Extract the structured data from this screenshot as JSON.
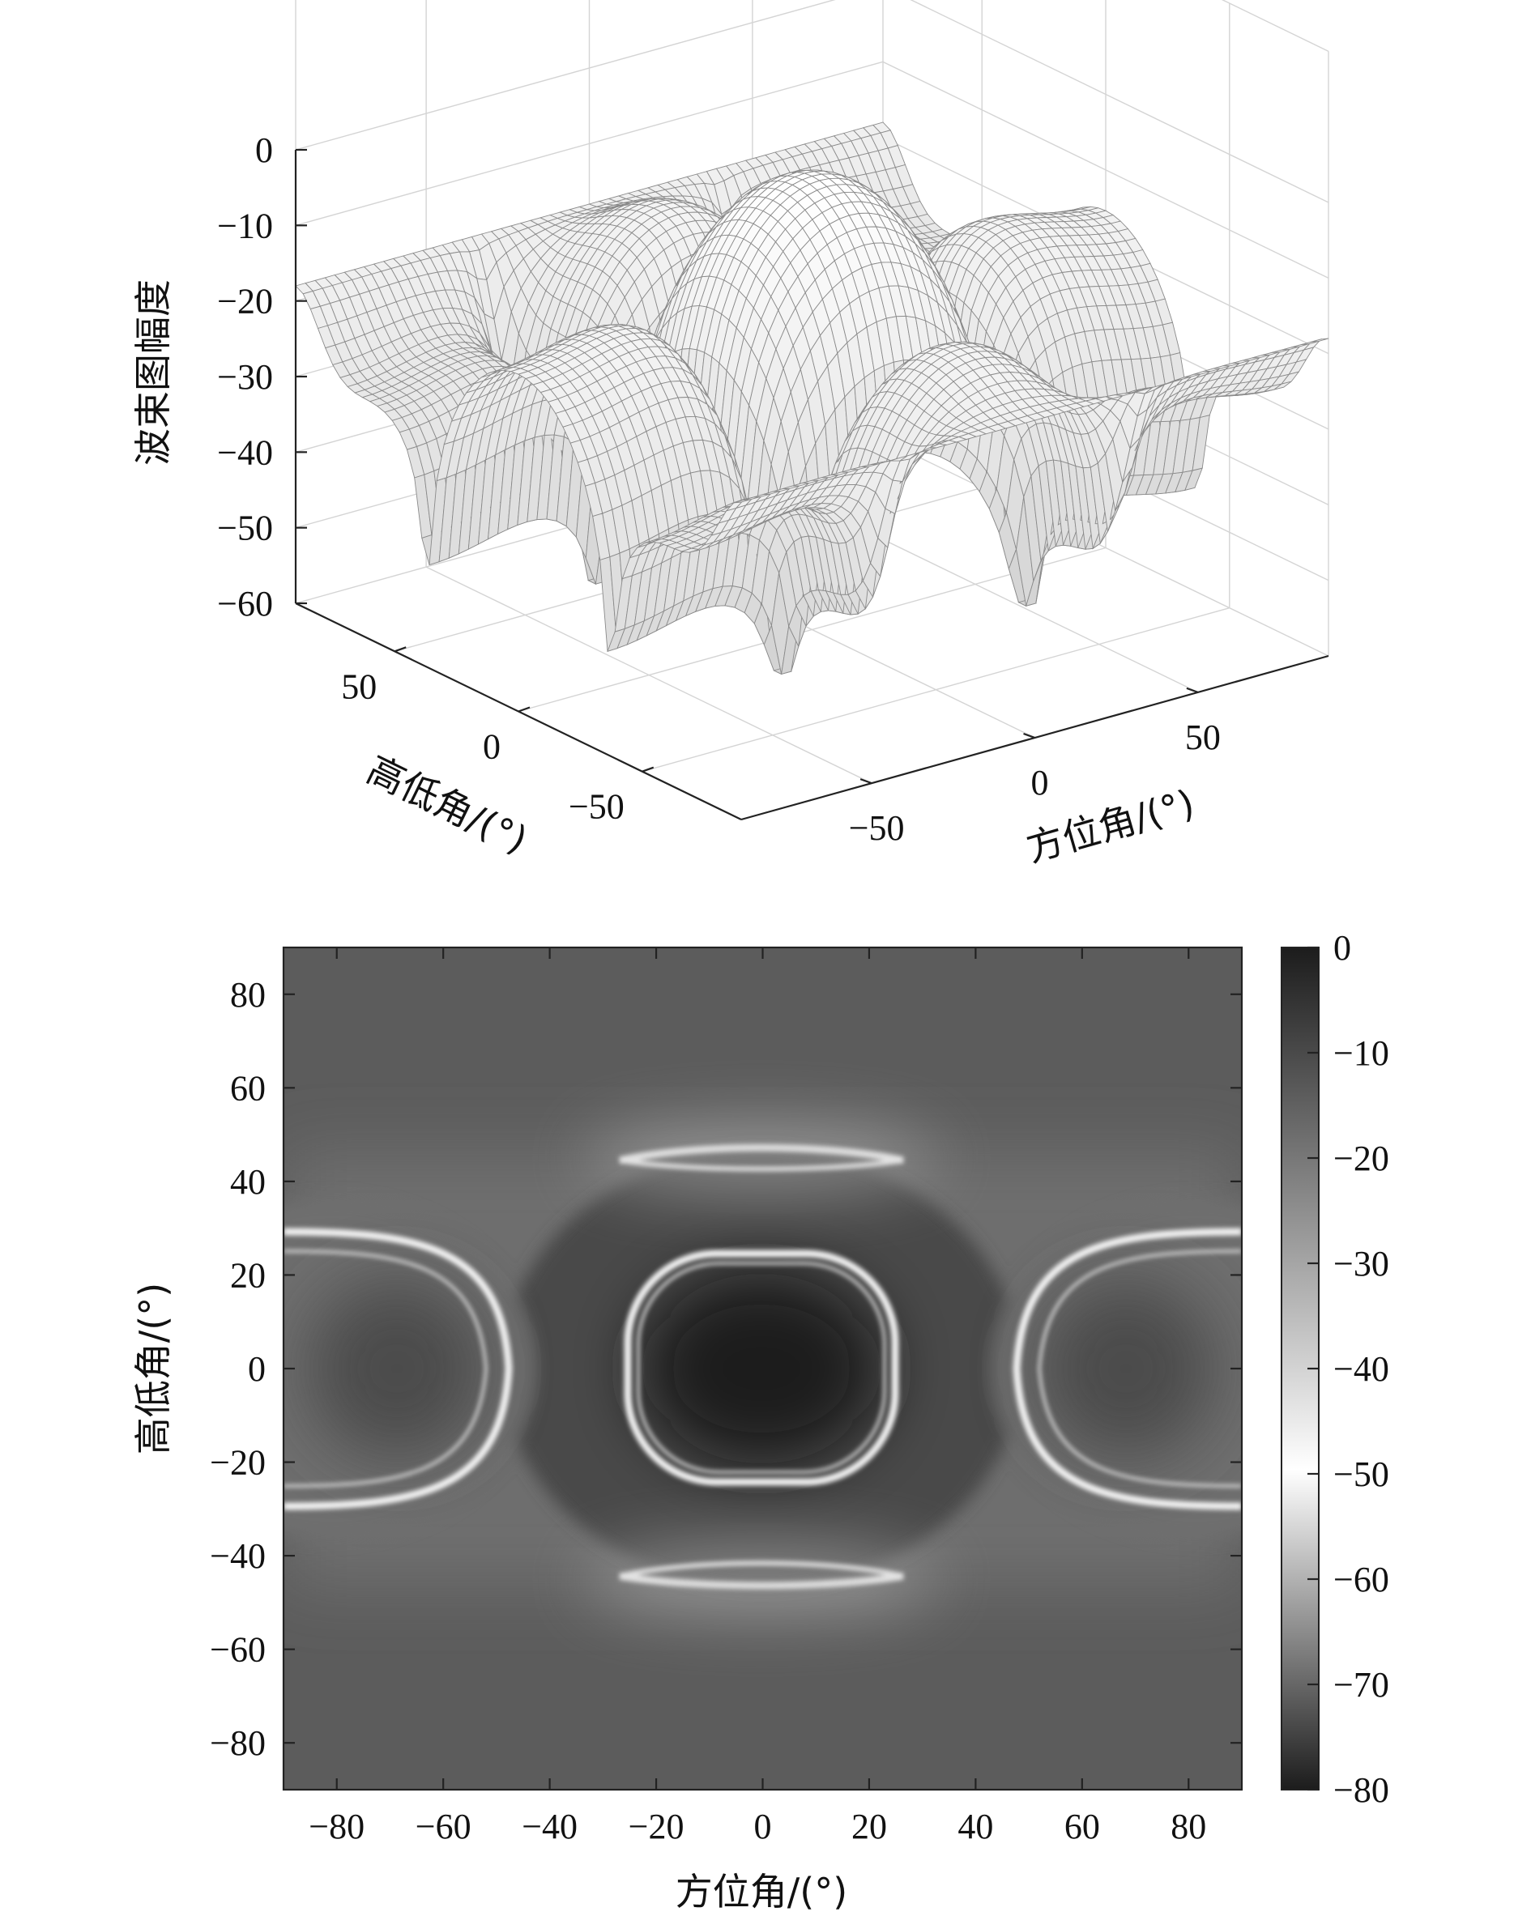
{
  "chart_data": [
    {
      "type": "surface",
      "ylabel": "波束图幅度",
      "xlabel_elevation": "高低角/(°)",
      "xlabel_azimuth": "方位角/(°)",
      "zlim": [
        -60,
        0
      ],
      "z_ticks": [
        "0",
        "−10",
        "−20",
        "−30",
        "−40",
        "−50",
        "−60"
      ],
      "elevation_ticks": [
        "50",
        "0",
        "−50"
      ],
      "azimuth_ticks": [
        "−50",
        "0",
        "50"
      ],
      "grid": true,
      "surface": {
        "main_lobe_db": 0,
        "edge_level_db": -18,
        "min_level_db": -55,
        "elevation_range": [
          -90,
          90
        ],
        "azimuth_range": [
          -90,
          90
        ]
      }
    },
    {
      "type": "heatmap",
      "xlabel": "方位角/(°)",
      "ylabel": "高低角/(°)",
      "xlim": [
        -90,
        90
      ],
      "ylim": [
        -90,
        90
      ],
      "x_ticks": [
        "−80",
        "−60",
        "−40",
        "−20",
        "0",
        "20",
        "40",
        "60",
        "80"
      ],
      "y_ticks": [
        "80",
        "60",
        "40",
        "20",
        "0",
        "−20",
        "−40",
        "−60",
        "−80"
      ],
      "colorbar_ticks": [
        "0",
        "−10",
        "−20",
        "−30",
        "−40",
        "−50",
        "−60",
        "−70",
        "−80"
      ],
      "colorbar_range": [
        -80,
        0
      ],
      "colormap": [
        "#1c1c1c",
        "#ffffff"
      ],
      "features": {
        "main_lobe_center": [
          0,
          0
        ],
        "main_lobe_level_db": 0,
        "background_level_db": -15,
        "null_ring_level_db": -80
      }
    }
  ]
}
